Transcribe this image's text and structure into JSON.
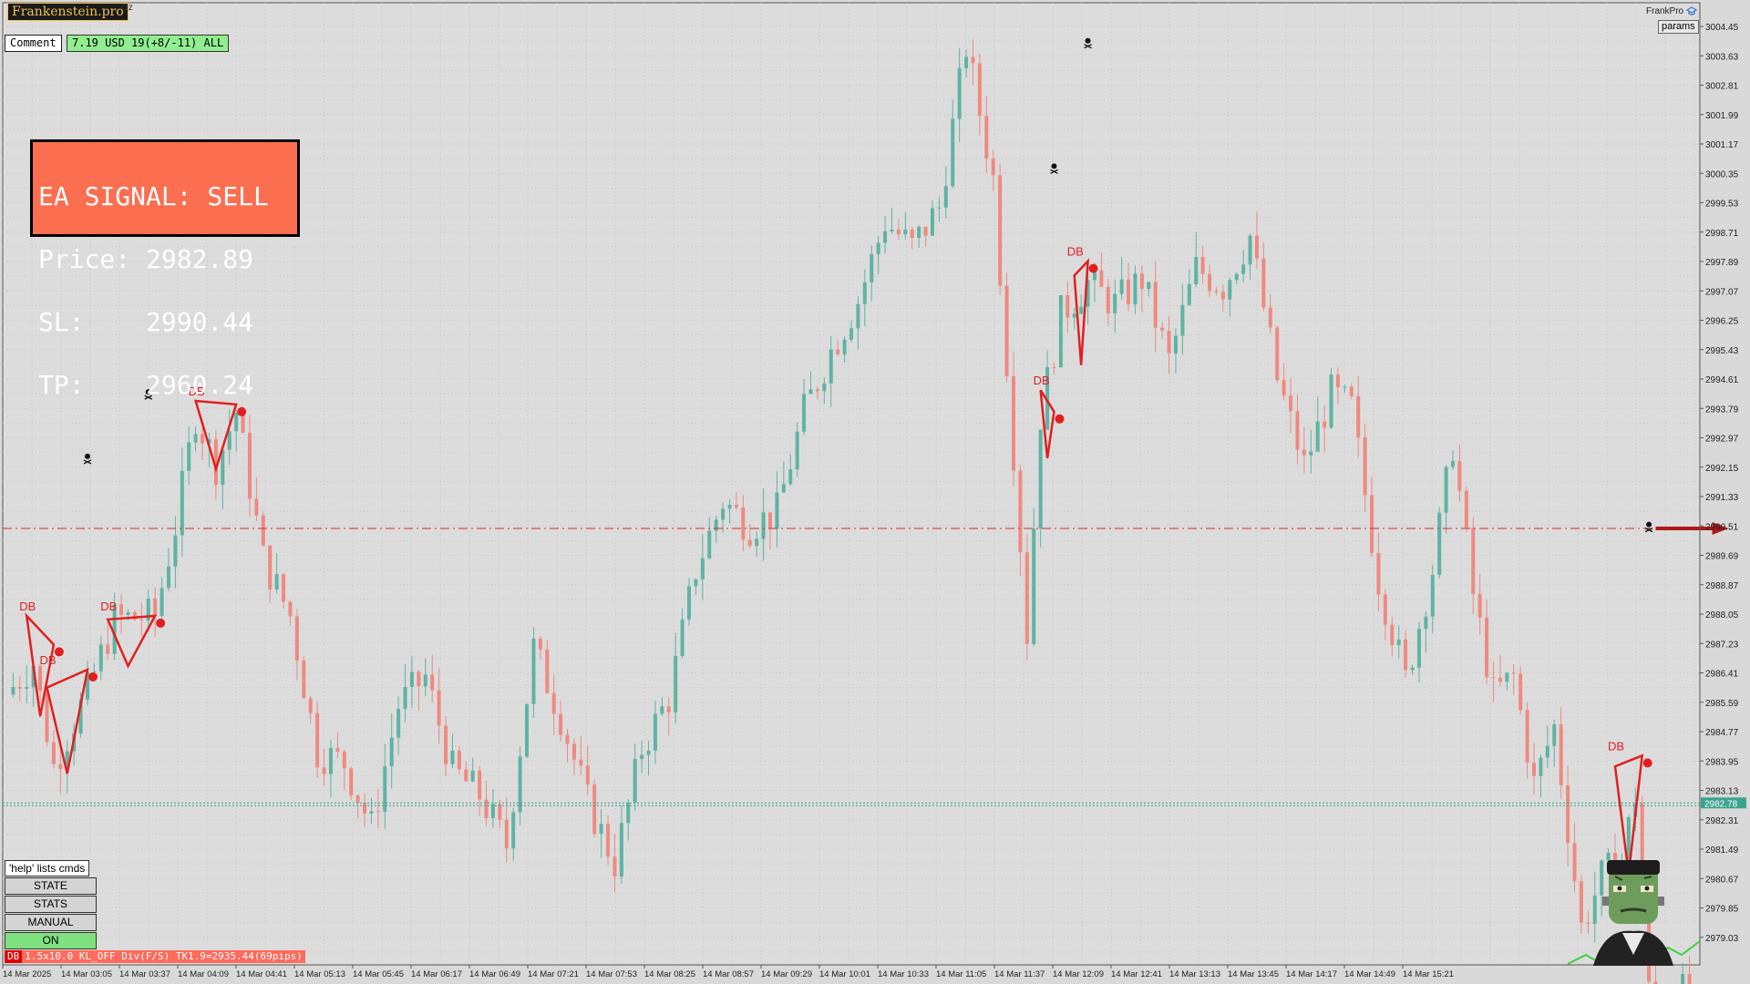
{
  "brand": {
    "name": "Frankenstein.pro",
    "suffix": "Oz"
  },
  "comment": {
    "label": "Comment",
    "info": "7.19 USD 19(+8/-11) ALL"
  },
  "signal": {
    "lines": [
      "EA SIGNAL: SELL",
      "Price: 2982.89",
      "SL:    2990.44",
      "TP:    2960.24"
    ]
  },
  "controls": {
    "help": "'help' lists cmds",
    "buttons": [
      "STATE",
      "STATS",
      "MANUAL",
      "ON"
    ]
  },
  "status": {
    "tag": "DB",
    "text": "1.5x10.0 KL_OFF Div(F/S) TK1.9=2935.44(69pips)"
  },
  "top_right": {
    "label": "FrankPro",
    "params": "params"
  },
  "colors": {
    "bull": "#5fb3a3",
    "bear": "#ef8a80",
    "pattern": "#e02020",
    "sl_line": "#d62828",
    "price_line": "#3aa38e"
  },
  "chart_data": {
    "type": "candlestick",
    "y_ticks": [
      "3004.45",
      "3003.63",
      "3002.81",
      "3001.99",
      "3001.17",
      "3000.35",
      "2999.53",
      "2998.71",
      "2997.89",
      "2997.07",
      "2996.25",
      "2995.43",
      "2994.61",
      "2993.79",
      "2992.97",
      "2992.15",
      "2991.33",
      "2990.51",
      "2989.69",
      "2988.87",
      "2988.05",
      "2987.23",
      "2986.41",
      "2985.59",
      "2984.77",
      "2983.95",
      "2983.13",
      "2982.31",
      "2981.49",
      "2980.67",
      "2979.85",
      "2979.03"
    ],
    "x_ticks": [
      "14 Mar 2025",
      "14 Mar 03:05",
      "14 Mar 03:37",
      "14 Mar 04:09",
      "14 Mar 04:41",
      "14 Mar 05:13",
      "14 Mar 05:45",
      "14 Mar 06:17",
      "14 Mar 06:49",
      "14 Mar 07:21",
      "14 Mar 07:53",
      "14 Mar 08:25",
      "14 Mar 08:57",
      "14 Mar 09:29",
      "14 Mar 10:01",
      "14 Mar 10:33",
      "14 Mar 11:05",
      "14 Mar 11:37",
      "14 Mar 12:09",
      "14 Mar 12:41",
      "14 Mar 13:13",
      "14 Mar 13:45",
      "14 Mar 14:17",
      "14 Mar 14:49",
      "14 Mar 15:21"
    ],
    "current_price": "2982.78",
    "sl_level": 2990.44,
    "patterns": [
      {
        "label": "DB",
        "points": [
          [
            3,
            2988.0
          ],
          [
            5,
            2985.2
          ],
          [
            7,
            2987.2
          ]
        ]
      },
      {
        "label": "DB",
        "points": [
          [
            6,
            2986.0
          ],
          [
            9,
            2983.6
          ],
          [
            12,
            2986.5
          ]
        ]
      },
      {
        "label": "DB",
        "points": [
          [
            15,
            2987.9
          ],
          [
            18,
            2986.6
          ],
          [
            22,
            2988.0
          ]
        ]
      },
      {
        "label": "DB",
        "points": [
          [
            28,
            2994.0
          ],
          [
            31,
            2992.1
          ],
          [
            34,
            2993.9
          ]
        ]
      },
      {
        "label": "DB",
        "points": [
          [
            153,
            2994.3
          ],
          [
            154,
            2992.4
          ],
          [
            155,
            2993.7
          ]
        ]
      },
      {
        "label": "DB",
        "points": [
          [
            158,
            2997.5
          ],
          [
            159,
            2995.0
          ],
          [
            160,
            2997.9
          ]
        ]
      },
      {
        "label": "DB",
        "points": [
          [
            238,
            2983.8
          ],
          [
            240,
            2980.8
          ],
          [
            242,
            2984.1
          ]
        ]
      }
    ],
    "skull_markers": [
      [
        12,
        2992.4
      ],
      [
        21,
        2994.2
      ],
      [
        155,
        3000.5
      ],
      [
        160,
        3004.0
      ],
      [
        243,
        2990.5
      ]
    ],
    "price_path": [
      [
        0,
        2985.8
      ],
      [
        4,
        2986.7
      ],
      [
        7,
        2983.8
      ],
      [
        12,
        2985.9
      ],
      [
        16,
        2987.9
      ],
      [
        22,
        2988.0
      ],
      [
        25,
        2990.5
      ],
      [
        28,
        2993.6
      ],
      [
        31,
        2992.2
      ],
      [
        34,
        2993.7
      ],
      [
        38,
        2989.6
      ],
      [
        42,
        2988.0
      ],
      [
        46,
        2984.2
      ],
      [
        50,
        2983.9
      ],
      [
        54,
        2982.1
      ],
      [
        58,
        2985.5
      ],
      [
        62,
        2986.3
      ],
      [
        66,
        2983.7
      ],
      [
        70,
        2983.0
      ],
      [
        74,
        2981.6
      ],
      [
        78,
        2987.1
      ],
      [
        82,
        2985.2
      ],
      [
        86,
        2982.8
      ],
      [
        90,
        2981.1
      ],
      [
        94,
        2984.3
      ],
      [
        98,
        2985.7
      ],
      [
        102,
        2989.3
      ],
      [
        106,
        2991.2
      ],
      [
        110,
        2990.5
      ],
      [
        114,
        2990.9
      ],
      [
        118,
        2993.7
      ],
      [
        122,
        2995.4
      ],
      [
        126,
        2996.8
      ],
      [
        130,
        2999.0
      ],
      [
        134,
        2998.3
      ],
      [
        138,
        2999.4
      ],
      [
        142,
        3003.9
      ],
      [
        146,
        3000.2
      ],
      [
        149,
        2992.6
      ],
      [
        151,
        2987.5
      ],
      [
        153,
        2993.6
      ],
      [
        156,
        2996.4
      ],
      [
        160,
        2997.3
      ],
      [
        164,
        2996.7
      ],
      [
        168,
        2997.4
      ],
      [
        172,
        2995.1
      ],
      [
        176,
        2997.7
      ],
      [
        180,
        2997.2
      ],
      [
        184,
        2998.6
      ],
      [
        188,
        2994.6
      ],
      [
        192,
        2992.2
      ],
      [
        196,
        2994.2
      ],
      [
        199,
        2993.8
      ],
      [
        203,
        2989.0
      ],
      [
        207,
        2986.2
      ],
      [
        211,
        2989.3
      ],
      [
        214,
        2992.8
      ],
      [
        217,
        2988.6
      ],
      [
        220,
        2985.8
      ],
      [
        223,
        2986.3
      ],
      [
        226,
        2983.3
      ],
      [
        229,
        2984.9
      ],
      [
        233,
        2979.3
      ],
      [
        236,
        2980.7
      ],
      [
        239,
        2981.2
      ],
      [
        241,
        2983.0
      ],
      [
        243,
        2977.5
      ]
    ]
  }
}
